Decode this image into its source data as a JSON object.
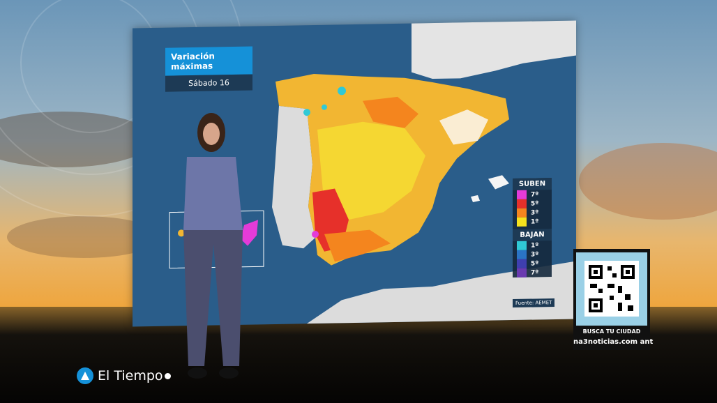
{
  "title": "Variación máximas",
  "subtitle": "Sábado 16",
  "legend": {
    "rise_header": "SUBEN",
    "rise_items": [
      {
        "label": "7º",
        "color": "#e43bd8"
      },
      {
        "label": "5º",
        "color": "#e6302a"
      },
      {
        "label": "3º",
        "color": "#f4851e"
      },
      {
        "label": "1º",
        "color": "#f5e11d"
      }
    ],
    "drop_header": "BAJAN",
    "drop_items": [
      {
        "label": "1º",
        "color": "#30c9d6"
      },
      {
        "label": "3º",
        "color": "#2a74c5"
      },
      {
        "label": "5º",
        "color": "#3f3fb0"
      },
      {
        "label": "7º",
        "color": "#6a3ab0"
      }
    ]
  },
  "source": "Fuente: AEMET",
  "qr": {
    "text_top": "BUSCA TU CIUDAD",
    "text_bottom": "na3noticias.com ant"
  },
  "brand": {
    "name": "El Tiempo"
  }
}
